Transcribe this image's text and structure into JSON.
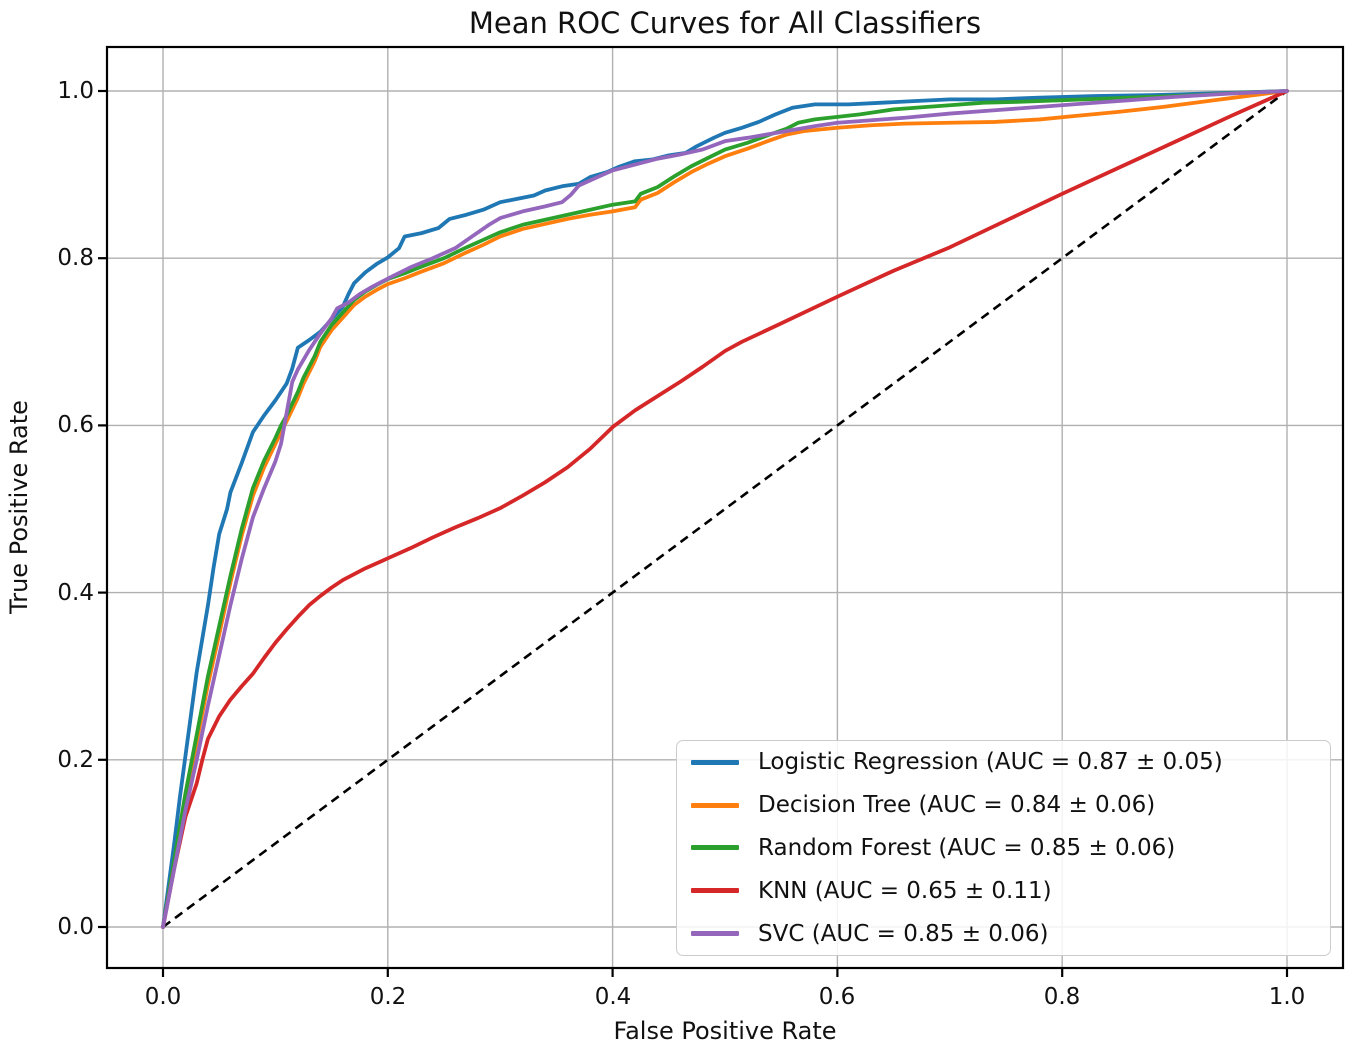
{
  "chart_data": {
    "type": "line",
    "title": "Mean ROC Curves for All Classifiers",
    "xlabel": "False Positive Rate",
    "ylabel": "True Positive Rate",
    "xlim": [
      0.0,
      1.0
    ],
    "ylim": [
      0.0,
      1.0
    ],
    "grid": true,
    "grid_color": "#b0b0b0",
    "spine_color": "#000000",
    "legend_position": "lower right",
    "x_ticks": [
      0.0,
      0.2,
      0.4,
      0.6,
      0.8,
      1.0
    ],
    "y_ticks": [
      0.0,
      0.2,
      0.4,
      0.6,
      0.8,
      1.0
    ],
    "x_tick_labels": [
      "0.0",
      "0.2",
      "0.4",
      "0.6",
      "0.8",
      "1.0"
    ],
    "y_tick_labels": [
      "0.0",
      "0.2",
      "0.4",
      "0.6",
      "0.8",
      "1.0"
    ],
    "series": [
      {
        "label": "Logistic Regression (AUC = 0.87 ± 0.05)",
        "name": "Logistic Regression",
        "auc_mean": 0.87,
        "auc_std": 0.05,
        "color": "#1f77b4",
        "linestyle": "solid",
        "points": [
          [
            0,
            0
          ],
          [
            0.005,
            0.05
          ],
          [
            0.01,
            0.1
          ],
          [
            0.015,
            0.155
          ],
          [
            0.02,
            0.205
          ],
          [
            0.025,
            0.255
          ],
          [
            0.03,
            0.305
          ],
          [
            0.035,
            0.345
          ],
          [
            0.04,
            0.385
          ],
          [
            0.045,
            0.43
          ],
          [
            0.05,
            0.47
          ],
          [
            0.057,
            0.5
          ],
          [
            0.06,
            0.52
          ],
          [
            0.07,
            0.555
          ],
          [
            0.08,
            0.592
          ],
          [
            0.09,
            0.612
          ],
          [
            0.1,
            0.63
          ],
          [
            0.11,
            0.65
          ],
          [
            0.115,
            0.668
          ],
          [
            0.12,
            0.693
          ],
          [
            0.13,
            0.702
          ],
          [
            0.14,
            0.712
          ],
          [
            0.15,
            0.727
          ],
          [
            0.16,
            0.742
          ],
          [
            0.165,
            0.757
          ],
          [
            0.17,
            0.77
          ],
          [
            0.18,
            0.783
          ],
          [
            0.19,
            0.793
          ],
          [
            0.2,
            0.801
          ],
          [
            0.21,
            0.812
          ],
          [
            0.215,
            0.826
          ],
          [
            0.23,
            0.83
          ],
          [
            0.245,
            0.836
          ],
          [
            0.255,
            0.847
          ],
          [
            0.27,
            0.852
          ],
          [
            0.285,
            0.858
          ],
          [
            0.3,
            0.867
          ],
          [
            0.315,
            0.871
          ],
          [
            0.33,
            0.875
          ],
          [
            0.34,
            0.881
          ],
          [
            0.355,
            0.886
          ],
          [
            0.37,
            0.889
          ],
          [
            0.38,
            0.897
          ],
          [
            0.395,
            0.903
          ],
          [
            0.405,
            0.909
          ],
          [
            0.42,
            0.916
          ],
          [
            0.435,
            0.918
          ],
          [
            0.45,
            0.923
          ],
          [
            0.465,
            0.926
          ],
          [
            0.475,
            0.934
          ],
          [
            0.49,
            0.944
          ],
          [
            0.5,
            0.95
          ],
          [
            0.515,
            0.956
          ],
          [
            0.53,
            0.963
          ],
          [
            0.545,
            0.972
          ],
          [
            0.56,
            0.98
          ],
          [
            0.58,
            0.984
          ],
          [
            0.61,
            0.984
          ],
          [
            0.64,
            0.986
          ],
          [
            0.67,
            0.988
          ],
          [
            0.7,
            0.99
          ],
          [
            0.74,
            0.99
          ],
          [
            0.78,
            0.992
          ],
          [
            0.83,
            0.994
          ],
          [
            0.88,
            0.995
          ],
          [
            0.93,
            0.997
          ],
          [
            1,
            1
          ]
        ]
      },
      {
        "label": "Decision Tree (AUC = 0.84 ± 0.06)",
        "name": "Decision Tree",
        "auc_mean": 0.84,
        "auc_std": 0.06,
        "color": "#ff7f0e",
        "linestyle": "solid",
        "points": [
          [
            0,
            0
          ],
          [
            0.01,
            0.075
          ],
          [
            0.02,
            0.15
          ],
          [
            0.03,
            0.222
          ],
          [
            0.04,
            0.29
          ],
          [
            0.05,
            0.35
          ],
          [
            0.06,
            0.412
          ],
          [
            0.07,
            0.468
          ],
          [
            0.08,
            0.516
          ],
          [
            0.09,
            0.55
          ],
          [
            0.1,
            0.578
          ],
          [
            0.105,
            0.592
          ],
          [
            0.11,
            0.605
          ],
          [
            0.12,
            0.633
          ],
          [
            0.125,
            0.65
          ],
          [
            0.135,
            0.677
          ],
          [
            0.14,
            0.694
          ],
          [
            0.15,
            0.714
          ],
          [
            0.16,
            0.729
          ],
          [
            0.17,
            0.744
          ],
          [
            0.18,
            0.754
          ],
          [
            0.19,
            0.762
          ],
          [
            0.2,
            0.769
          ],
          [
            0.215,
            0.776
          ],
          [
            0.23,
            0.784
          ],
          [
            0.25,
            0.794
          ],
          [
            0.27,
            0.807
          ],
          [
            0.285,
            0.816
          ],
          [
            0.3,
            0.826
          ],
          [
            0.32,
            0.835
          ],
          [
            0.34,
            0.841
          ],
          [
            0.36,
            0.847
          ],
          [
            0.38,
            0.852
          ],
          [
            0.4,
            0.856
          ],
          [
            0.42,
            0.861
          ],
          [
            0.425,
            0.87
          ],
          [
            0.44,
            0.878
          ],
          [
            0.455,
            0.891
          ],
          [
            0.47,
            0.903
          ],
          [
            0.485,
            0.913
          ],
          [
            0.5,
            0.922
          ],
          [
            0.52,
            0.931
          ],
          [
            0.54,
            0.941
          ],
          [
            0.555,
            0.948
          ],
          [
            0.57,
            0.952
          ],
          [
            0.6,
            0.956
          ],
          [
            0.63,
            0.959
          ],
          [
            0.66,
            0.961
          ],
          [
            0.7,
            0.962
          ],
          [
            0.74,
            0.963
          ],
          [
            0.78,
            0.966
          ],
          [
            0.81,
            0.97
          ],
          [
            0.85,
            0.975
          ],
          [
            0.89,
            0.981
          ],
          [
            0.93,
            0.988
          ],
          [
            0.97,
            0.995
          ],
          [
            1,
            1
          ]
        ]
      },
      {
        "label": "Random Forest (AUC = 0.85 ± 0.06)",
        "name": "Random Forest",
        "auc_mean": 0.85,
        "auc_std": 0.06,
        "color": "#2ca02c",
        "linestyle": "solid",
        "points": [
          [
            0,
            0
          ],
          [
            0.01,
            0.08
          ],
          [
            0.02,
            0.16
          ],
          [
            0.03,
            0.23
          ],
          [
            0.04,
            0.3
          ],
          [
            0.05,
            0.36
          ],
          [
            0.06,
            0.42
          ],
          [
            0.07,
            0.476
          ],
          [
            0.08,
            0.525
          ],
          [
            0.09,
            0.558
          ],
          [
            0.1,
            0.585
          ],
          [
            0.105,
            0.6
          ],
          [
            0.11,
            0.612
          ],
          [
            0.12,
            0.64
          ],
          [
            0.125,
            0.657
          ],
          [
            0.135,
            0.683
          ],
          [
            0.14,
            0.7
          ],
          [
            0.15,
            0.72
          ],
          [
            0.16,
            0.735
          ],
          [
            0.17,
            0.75
          ],
          [
            0.18,
            0.76
          ],
          [
            0.19,
            0.768
          ],
          [
            0.2,
            0.775
          ],
          [
            0.215,
            0.782
          ],
          [
            0.23,
            0.79
          ],
          [
            0.25,
            0.8
          ],
          [
            0.27,
            0.813
          ],
          [
            0.285,
            0.822
          ],
          [
            0.3,
            0.831
          ],
          [
            0.32,
            0.84
          ],
          [
            0.34,
            0.846
          ],
          [
            0.36,
            0.852
          ],
          [
            0.38,
            0.858
          ],
          [
            0.4,
            0.864
          ],
          [
            0.42,
            0.868
          ],
          [
            0.425,
            0.877
          ],
          [
            0.44,
            0.885
          ],
          [
            0.455,
            0.898
          ],
          [
            0.47,
            0.91
          ],
          [
            0.485,
            0.92
          ],
          [
            0.5,
            0.93
          ],
          [
            0.52,
            0.938
          ],
          [
            0.54,
            0.948
          ],
          [
            0.555,
            0.955
          ],
          [
            0.565,
            0.962
          ],
          [
            0.58,
            0.966
          ],
          [
            0.6,
            0.969
          ],
          [
            0.62,
            0.972
          ],
          [
            0.65,
            0.978
          ],
          [
            0.68,
            0.981
          ],
          [
            0.7,
            0.983
          ],
          [
            0.73,
            0.986
          ],
          [
            0.76,
            0.987
          ],
          [
            0.8,
            0.989
          ],
          [
            0.84,
            0.991
          ],
          [
            0.88,
            0.993
          ],
          [
            0.92,
            0.995
          ],
          [
            0.96,
            0.998
          ],
          [
            1,
            1
          ]
        ]
      },
      {
        "label": "KNN (AUC = 0.65 ± 0.11)",
        "name": "KNN",
        "auc_mean": 0.65,
        "auc_std": 0.11,
        "color": "#d62728",
        "linestyle": "solid",
        "points": [
          [
            0,
            0
          ],
          [
            0.005,
            0.035
          ],
          [
            0.01,
            0.07
          ],
          [
            0.02,
            0.132
          ],
          [
            0.03,
            0.172
          ],
          [
            0.035,
            0.2
          ],
          [
            0.04,
            0.225
          ],
          [
            0.05,
            0.252
          ],
          [
            0.06,
            0.272
          ],
          [
            0.07,
            0.288
          ],
          [
            0.08,
            0.303
          ],
          [
            0.09,
            0.322
          ],
          [
            0.1,
            0.34
          ],
          [
            0.11,
            0.356
          ],
          [
            0.12,
            0.371
          ],
          [
            0.13,
            0.385
          ],
          [
            0.14,
            0.396
          ],
          [
            0.15,
            0.406
          ],
          [
            0.16,
            0.415
          ],
          [
            0.17,
            0.422
          ],
          [
            0.18,
            0.429
          ],
          [
            0.2,
            0.441
          ],
          [
            0.22,
            0.453
          ],
          [
            0.24,
            0.466
          ],
          [
            0.26,
            0.478
          ],
          [
            0.28,
            0.489
          ],
          [
            0.3,
            0.501
          ],
          [
            0.32,
            0.516
          ],
          [
            0.34,
            0.532
          ],
          [
            0.36,
            0.55
          ],
          [
            0.38,
            0.572
          ],
          [
            0.4,
            0.598
          ],
          [
            0.42,
            0.618
          ],
          [
            0.44,
            0.635
          ],
          [
            0.46,
            0.652
          ],
          [
            0.48,
            0.67
          ],
          [
            0.5,
            0.689
          ],
          [
            0.515,
            0.7
          ],
          [
            0.55,
            0.722
          ],
          [
            0.6,
            0.754
          ],
          [
            0.65,
            0.785
          ],
          [
            0.7,
            0.813
          ],
          [
            0.75,
            0.845
          ],
          [
            0.8,
            0.877
          ],
          [
            0.85,
            0.908
          ],
          [
            0.9,
            0.939
          ],
          [
            0.95,
            0.97
          ],
          [
            1,
            1
          ]
        ]
      },
      {
        "label": "SVC (AUC = 0.85 ± 0.06)",
        "name": "SVC",
        "auc_mean": 0.85,
        "auc_std": 0.06,
        "color": "#9467bd",
        "linestyle": "solid",
        "points": [
          [
            0,
            0
          ],
          [
            0.01,
            0.07
          ],
          [
            0.02,
            0.14
          ],
          [
            0.03,
            0.2
          ],
          [
            0.04,
            0.265
          ],
          [
            0.05,
            0.325
          ],
          [
            0.06,
            0.385
          ],
          [
            0.07,
            0.44
          ],
          [
            0.08,
            0.49
          ],
          [
            0.09,
            0.525
          ],
          [
            0.1,
            0.557
          ],
          [
            0.105,
            0.578
          ],
          [
            0.11,
            0.615
          ],
          [
            0.115,
            0.652
          ],
          [
            0.12,
            0.667
          ],
          [
            0.13,
            0.69
          ],
          [
            0.14,
            0.71
          ],
          [
            0.15,
            0.728
          ],
          [
            0.155,
            0.74
          ],
          [
            0.165,
            0.747
          ],
          [
            0.175,
            0.757
          ],
          [
            0.185,
            0.765
          ],
          [
            0.195,
            0.772
          ],
          [
            0.205,
            0.779
          ],
          [
            0.22,
            0.789
          ],
          [
            0.24,
            0.8
          ],
          [
            0.26,
            0.812
          ],
          [
            0.275,
            0.826
          ],
          [
            0.29,
            0.84
          ],
          [
            0.3,
            0.848
          ],
          [
            0.32,
            0.856
          ],
          [
            0.34,
            0.862
          ],
          [
            0.355,
            0.867
          ],
          [
            0.363,
            0.876
          ],
          [
            0.37,
            0.887
          ],
          [
            0.385,
            0.896
          ],
          [
            0.4,
            0.905
          ],
          [
            0.42,
            0.912
          ],
          [
            0.44,
            0.919
          ],
          [
            0.46,
            0.924
          ],
          [
            0.48,
            0.93
          ],
          [
            0.5,
            0.94
          ],
          [
            0.52,
            0.944
          ],
          [
            0.55,
            0.951
          ],
          [
            0.58,
            0.958
          ],
          [
            0.6,
            0.962
          ],
          [
            0.63,
            0.965
          ],
          [
            0.66,
            0.968
          ],
          [
            0.7,
            0.973
          ],
          [
            0.74,
            0.977
          ],
          [
            0.78,
            0.981
          ],
          [
            0.82,
            0.985
          ],
          [
            0.86,
            0.989
          ],
          [
            0.9,
            0.993
          ],
          [
            0.95,
            0.997
          ],
          [
            1,
            1
          ]
        ]
      }
    ],
    "reference_line": {
      "name": "chance-diagonal",
      "color": "#000000",
      "linestyle": "dashed",
      "points": [
        [
          0,
          0
        ],
        [
          1,
          1
        ]
      ]
    }
  }
}
